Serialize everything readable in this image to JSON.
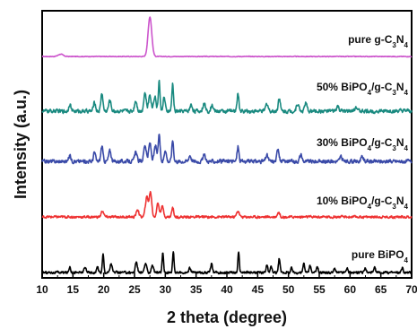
{
  "chart_data": {
    "type": "line",
    "xlabel": "2 theta (degree)",
    "ylabel": "Intensity (a.u.)",
    "xlim": [
      10,
      70
    ],
    "x_ticks": [
      10,
      15,
      20,
      25,
      30,
      35,
      40,
      45,
      50,
      55,
      60,
      65,
      70
    ],
    "y_ticks_shown": false,
    "grid": false,
    "series": [
      {
        "name": "pure g-C3N4",
        "label_parts": [
          [
            "pure g-C",
            false
          ],
          [
            "3",
            true
          ],
          [
            "N",
            false
          ],
          [
            "4",
            true
          ]
        ],
        "color": "#cc55cc",
        "offset": 4,
        "baseline_noise": 0.04,
        "peaks": [
          [
            13.0,
            0.15,
            0.6
          ],
          [
            27.5,
            2.6,
            0.45
          ]
        ]
      },
      {
        "name": "50% BiPO4/g-C3N4",
        "label_parts": [
          [
            "50% BiPO",
            false
          ],
          [
            "4",
            true
          ],
          [
            "/g-C",
            false
          ],
          [
            "3",
            true
          ],
          [
            "N",
            false
          ],
          [
            "4",
            true
          ]
        ],
        "color": "#1a8a80",
        "offset": 3,
        "baseline_noise": 0.22,
        "peaks": [
          [
            14.5,
            0.5,
            0.25
          ],
          [
            18.5,
            0.6,
            0.25
          ],
          [
            19.7,
            1.2,
            0.25
          ],
          [
            21.0,
            0.7,
            0.3
          ],
          [
            25.2,
            0.7,
            0.3
          ],
          [
            26.7,
            1.2,
            0.3
          ],
          [
            27.5,
            1.1,
            0.3
          ],
          [
            28.3,
            1.0,
            0.3
          ],
          [
            29.0,
            2.0,
            0.2
          ],
          [
            29.8,
            0.9,
            0.25
          ],
          [
            31.2,
            1.8,
            0.2
          ],
          [
            34.2,
            0.4,
            0.3
          ],
          [
            36.3,
            0.5,
            0.3
          ],
          [
            37.6,
            0.4,
            0.3
          ],
          [
            41.8,
            1.2,
            0.22
          ],
          [
            46.5,
            0.5,
            0.3
          ],
          [
            48.5,
            0.9,
            0.25
          ],
          [
            51.5,
            0.5,
            0.3
          ],
          [
            52.8,
            0.5,
            0.3
          ],
          [
            58.0,
            0.3,
            0.3
          ],
          [
            61.0,
            0.3,
            0.3
          ]
        ]
      },
      {
        "name": "30% BiPO4/g-C3N4",
        "label_parts": [
          [
            "30% BiPO",
            false
          ],
          [
            "4",
            true
          ],
          [
            "/g-C",
            false
          ],
          [
            "3",
            true
          ],
          [
            "N",
            false
          ],
          [
            "4",
            true
          ]
        ],
        "color": "#3a4aa8",
        "offset": 2,
        "baseline_noise": 0.22,
        "peaks": [
          [
            14.5,
            0.4,
            0.25
          ],
          [
            18.5,
            0.6,
            0.25
          ],
          [
            19.7,
            1.0,
            0.25
          ],
          [
            21.0,
            0.7,
            0.3
          ],
          [
            25.2,
            0.6,
            0.3
          ],
          [
            26.7,
            1.1,
            0.3
          ],
          [
            27.5,
            1.2,
            0.3
          ],
          [
            28.4,
            1.0,
            0.3
          ],
          [
            29.0,
            1.8,
            0.22
          ],
          [
            30.0,
            0.8,
            0.25
          ],
          [
            31.2,
            1.4,
            0.22
          ],
          [
            34.0,
            0.4,
            0.3
          ],
          [
            36.3,
            0.4,
            0.3
          ],
          [
            41.8,
            1.0,
            0.22
          ],
          [
            46.5,
            0.4,
            0.3
          ],
          [
            48.3,
            0.9,
            0.25
          ],
          [
            52.0,
            0.4,
            0.3
          ],
          [
            58.5,
            0.3,
            0.3
          ],
          [
            62.0,
            0.3,
            0.3
          ]
        ]
      },
      {
        "name": "10% BiPO4/g-C3N4",
        "label_parts": [
          [
            "10% BiPO",
            false
          ],
          [
            "4",
            true
          ],
          [
            "/g-C",
            false
          ],
          [
            "3",
            true
          ],
          [
            "N",
            false
          ],
          [
            "4",
            true
          ]
        ],
        "color": "#ee3333",
        "offset": 1,
        "baseline_noise": 0.14,
        "peaks": [
          [
            19.8,
            0.4,
            0.3
          ],
          [
            25.5,
            0.5,
            0.3
          ],
          [
            27.0,
            1.3,
            0.35
          ],
          [
            27.6,
            1.6,
            0.3
          ],
          [
            28.8,
            0.9,
            0.3
          ],
          [
            29.5,
            0.7,
            0.3
          ],
          [
            31.2,
            0.6,
            0.25
          ],
          [
            41.8,
            0.4,
            0.3
          ],
          [
            48.4,
            0.3,
            0.3
          ]
        ]
      },
      {
        "name": "pure BiPO4",
        "label_parts": [
          [
            "pure BiPO",
            false
          ],
          [
            "4",
            true
          ]
        ],
        "color": "#000000",
        "offset": 0,
        "baseline_noise": 0.14,
        "peaks": [
          [
            14.5,
            0.4,
            0.2
          ],
          [
            17.0,
            0.3,
            0.3
          ],
          [
            19.0,
            0.4,
            0.2
          ],
          [
            19.9,
            1.2,
            0.18
          ],
          [
            21.2,
            0.6,
            0.25
          ],
          [
            25.3,
            0.7,
            0.25
          ],
          [
            26.8,
            0.6,
            0.25
          ],
          [
            27.9,
            0.5,
            0.25
          ],
          [
            29.6,
            1.3,
            0.18
          ],
          [
            31.3,
            1.4,
            0.18
          ],
          [
            34.0,
            0.3,
            0.25
          ],
          [
            37.5,
            0.6,
            0.2
          ],
          [
            41.9,
            1.3,
            0.18
          ],
          [
            46.5,
            0.5,
            0.2
          ],
          [
            47.2,
            0.4,
            0.2
          ],
          [
            48.5,
            0.9,
            0.2
          ],
          [
            50.5,
            0.3,
            0.2
          ],
          [
            52.5,
            0.6,
            0.2
          ],
          [
            53.5,
            0.5,
            0.2
          ],
          [
            54.7,
            0.4,
            0.2
          ],
          [
            57.5,
            0.3,
            0.2
          ],
          [
            59.5,
            0.3,
            0.2
          ],
          [
            62.5,
            0.3,
            0.2
          ],
          [
            64.0,
            0.3,
            0.2
          ],
          [
            68.5,
            0.3,
            0.2
          ]
        ]
      }
    ]
  }
}
